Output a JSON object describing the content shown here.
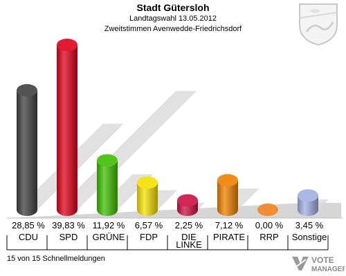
{
  "title": "Stadt Gütersloh",
  "subtitle": "Landtagswahl 13.05.2012",
  "subtitle2": "Zweitstimmen Avenwedde-Friedrichsdorf",
  "footer": "15 von 15 Schnellmeldungen",
  "logo": {
    "line1": "VOTE",
    "line2": "MANAGER"
  },
  "chart_data": {
    "type": "bar",
    "categories": [
      "CDU",
      "SPD",
      "GRÜNE",
      "FDP",
      "DIE LINKE",
      "PIRATE",
      "RRP",
      "Sonstige"
    ],
    "values": [
      28.85,
      39.83,
      11.92,
      6.57,
      2.25,
      7.12,
      0.0,
      3.45
    ],
    "value_labels": [
      "28,85 %",
      "39,83 %",
      "11,92 %",
      "6,57 %",
      "2,25 %",
      "7,12 %",
      "0,00 %",
      "3,45 %"
    ],
    "colors": [
      "#404040",
      "#e0001a",
      "#3fbf00",
      "#f5e000",
      "#cc1040",
      "#f08000",
      "#f08020",
      "#a0b0e0"
    ],
    "ylim": [
      0,
      40
    ],
    "grid": false,
    "legend": "none"
  }
}
